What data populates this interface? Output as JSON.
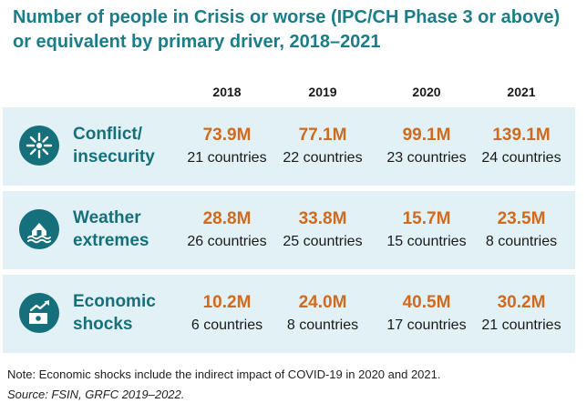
{
  "chart_data": {
    "type": "table",
    "title": "Number of people in Crisis or worse (IPC/CH Phase 3 or above) or equivalent by primary driver, 2018–2021",
    "columns": [
      "2018",
      "2019",
      "2020",
      "2021"
    ],
    "rows": [
      {
        "driver": "Conflict/ insecurity",
        "icon": "conflict-icon",
        "cells": [
          {
            "value": "73.9M",
            "countries": "21 countries"
          },
          {
            "value": "77.1M",
            "countries": "22 countries"
          },
          {
            "value": "99.1M",
            "countries": "23 countries"
          },
          {
            "value": "139.1M",
            "countries": "24 countries"
          }
        ]
      },
      {
        "driver": "Weather extremes",
        "icon": "weather-icon",
        "cells": [
          {
            "value": "28.8M",
            "countries": "26 countries"
          },
          {
            "value": "33.8M",
            "countries": "25 countries"
          },
          {
            "value": "15.7M",
            "countries": "15 countries"
          },
          {
            "value": "23.5M",
            "countries": "8 countries"
          }
        ]
      },
      {
        "driver": "Economic shocks",
        "icon": "economic-icon",
        "cells": [
          {
            "value": "10.2M",
            "countries": "6 countries"
          },
          {
            "value": "24.0M",
            "countries": "8 countries"
          },
          {
            "value": "40.5M",
            "countries": "17 countries"
          },
          {
            "value": "30.2M",
            "countries": "21 countries"
          }
        ]
      }
    ],
    "note": "Note: Economic shocks include the indirect impact of COVID-19 in 2020 and 2021.",
    "source": "Source: FSIN, GRFC 2019–2022."
  },
  "colors": {
    "title": "#1a7d88",
    "driver": "#16707c",
    "value": "#d06a1f",
    "band": "#e2f1f5"
  }
}
